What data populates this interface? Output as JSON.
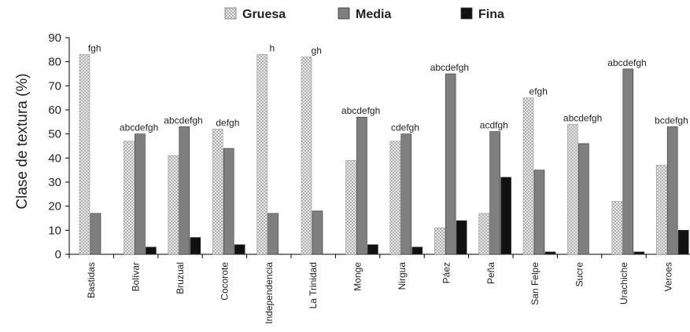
{
  "chart_data": {
    "type": "bar",
    "title": "",
    "xlabel": "",
    "ylabel": "Clase de textura (%)",
    "ylim": [
      0,
      90
    ],
    "yticks": [
      0,
      10,
      20,
      30,
      40,
      50,
      60,
      70,
      80,
      90
    ],
    "grid": false,
    "legend_position": "top",
    "categories": [
      "Bastidas",
      "Bolívar",
      "Bruzual",
      "Cocorote",
      "Independencia",
      "La Trinidad",
      "Monge",
      "Nirgua",
      "Páez",
      "Peña",
      "San Felpe",
      "Sucre",
      "Urachiche",
      "Veroes"
    ],
    "series": [
      {
        "name": "Gruesa",
        "color": "#e6e6e6",
        "pattern": "crosshatch",
        "values": [
          83,
          47,
          41,
          52,
          83,
          82,
          39,
          47,
          11,
          17,
          65,
          54,
          22,
          37
        ]
      },
      {
        "name": "Media",
        "color": "#7f7f7f",
        "pattern": "solid",
        "values": [
          17,
          50,
          53,
          44,
          17,
          18,
          57,
          50,
          75,
          51,
          35,
          46,
          77,
          53
        ]
      },
      {
        "name": "Fina",
        "color": "#111111",
        "pattern": "solid",
        "values": [
          0,
          3,
          7,
          4,
          0,
          0,
          4,
          3,
          14,
          32,
          1,
          0,
          1,
          10
        ]
      }
    ],
    "annotations": [
      "fgh",
      "abcdefgh",
      "abcdefgh",
      "defgh",
      "h",
      "gh",
      "abcdefgh",
      "cdefgh",
      "abcdefgh",
      "acdfgh",
      "efgh",
      "abcdefgh",
      "abcdefgh",
      "bcdefgh"
    ]
  }
}
